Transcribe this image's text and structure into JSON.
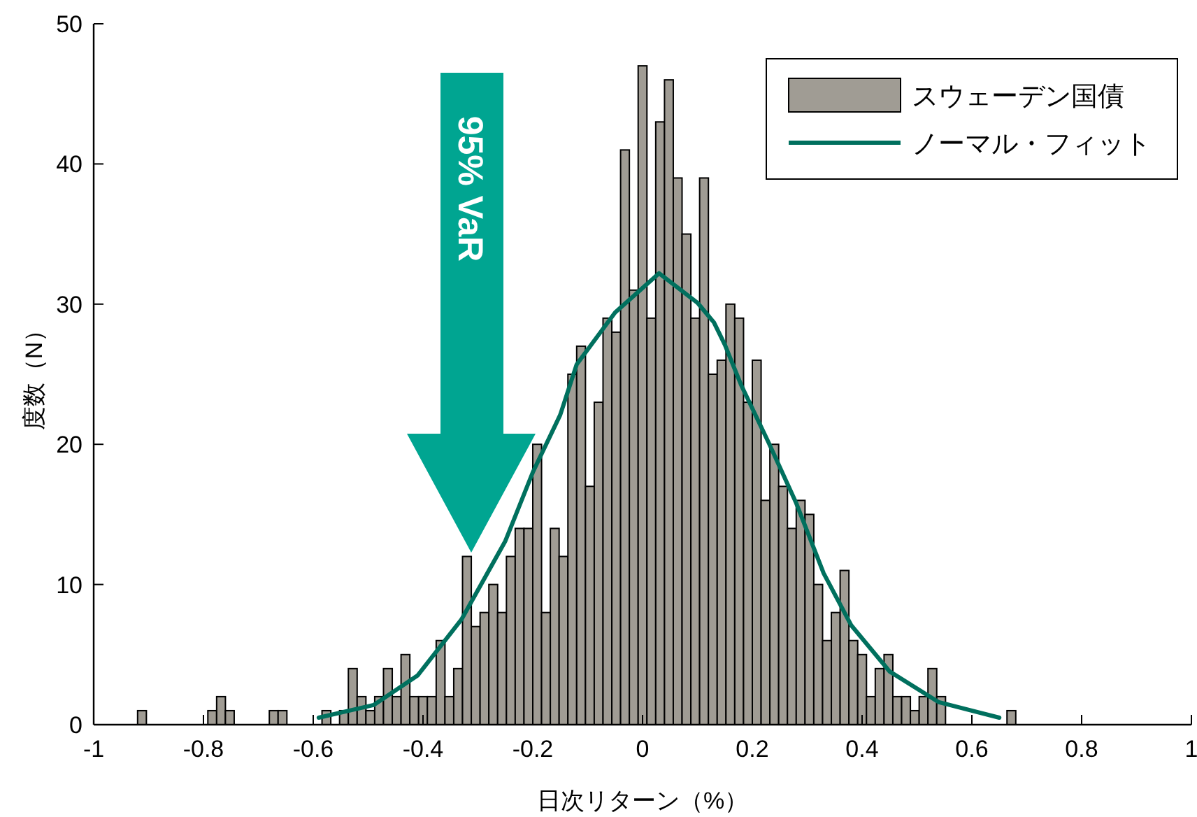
{
  "chart_data": {
    "type": "histogram",
    "xlabel": "日次リターン（%）",
    "ylabel": "度数（N）",
    "legend": "top right",
    "xlim": [
      -1,
      1
    ],
    "ylim": [
      0,
      50
    ],
    "xticks": [
      -1,
      -0.8,
      -0.6,
      -0.4,
      -0.2,
      0,
      0.2,
      0.4,
      0.6,
      0.8,
      1
    ],
    "yticks": [
      0,
      10,
      20,
      30,
      40,
      50
    ],
    "annotations": [
      "95% VaR"
    ],
    "series": [
      {
        "name": "スウェーデン国債",
        "type": "histogram",
        "color": "#a09c94",
        "bins": [
          -0.92,
          -0.904,
          -0.888,
          -0.872,
          -0.856,
          -0.84,
          -0.824,
          -0.808,
          -0.792,
          -0.776,
          -0.76,
          -0.744,
          -0.728,
          -0.712,
          -0.696,
          -0.68,
          -0.664,
          -0.648,
          -0.632,
          -0.616,
          -0.6,
          -0.584,
          -0.568,
          -0.552,
          -0.536,
          -0.52,
          -0.504,
          -0.488,
          -0.472,
          -0.456,
          -0.44,
          -0.424,
          -0.408,
          -0.392,
          -0.376,
          -0.36,
          -0.344,
          -0.328,
          -0.312,
          -0.296,
          -0.28,
          -0.264,
          -0.248,
          -0.232,
          -0.216,
          -0.2,
          -0.184,
          -0.168,
          -0.152,
          -0.136,
          -0.12,
          -0.104,
          -0.088,
          -0.072,
          -0.056,
          -0.04,
          -0.024,
          -0.008,
          0.008,
          0.024,
          0.04,
          0.056,
          0.072,
          0.088,
          0.104,
          0.12,
          0.136,
          0.152,
          0.168,
          0.184,
          0.2,
          0.216,
          0.232,
          0.248,
          0.264,
          0.28,
          0.296,
          0.312,
          0.328,
          0.344,
          0.36,
          0.376,
          0.392,
          0.408,
          0.424,
          0.44,
          0.456,
          0.472,
          0.488,
          0.504,
          0.52,
          0.536,
          0.552,
          0.568,
          0.584,
          0.6,
          0.616,
          0.632,
          0.648,
          0.664,
          0.68
        ],
        "values": [
          1,
          0,
          0,
          0,
          0,
          0,
          0,
          0,
          1,
          2,
          1,
          0,
          0,
          0,
          0,
          1,
          1,
          0,
          0,
          0,
          0,
          1,
          0,
          1,
          4,
          2,
          1,
          2,
          4,
          2,
          5,
          2,
          2,
          2,
          6,
          2,
          4,
          12,
          7,
          8,
          10,
          8,
          12,
          14,
          14,
          20,
          8,
          14,
          12,
          25,
          27,
          17,
          23,
          29,
          28,
          41,
          31,
          47,
          29,
          43,
          46,
          39,
          35,
          29,
          39,
          25,
          26,
          30,
          29,
          23,
          26,
          16,
          20,
          17,
          14,
          16,
          15,
          10,
          6,
          8,
          11,
          6,
          5,
          2,
          4,
          5,
          2,
          2,
          1,
          2,
          4,
          2,
          0,
          0,
          0,
          0,
          0,
          0,
          0,
          1
        ]
      },
      {
        "name": "ノーマル・フィット",
        "type": "line",
        "color": "#00705e",
        "x": [
          -0.59,
          -0.49,
          -0.41,
          -0.33,
          -0.25,
          -0.2,
          -0.15,
          -0.12,
          -0.05,
          0.03,
          0.1,
          0.13,
          0.15,
          0.18,
          0.23,
          0.28,
          0.33,
          0.38,
          0.45,
          0.54,
          0.65
        ],
        "values": [
          0.5,
          1.4,
          3.5,
          7.5,
          13.1,
          18,
          22.1,
          25.7,
          29.4,
          32.2,
          30.1,
          28.7,
          27.1,
          24.2,
          20.1,
          15.8,
          10.8,
          7.1,
          3.8,
          1.6,
          0.5
        ]
      }
    ]
  }
}
